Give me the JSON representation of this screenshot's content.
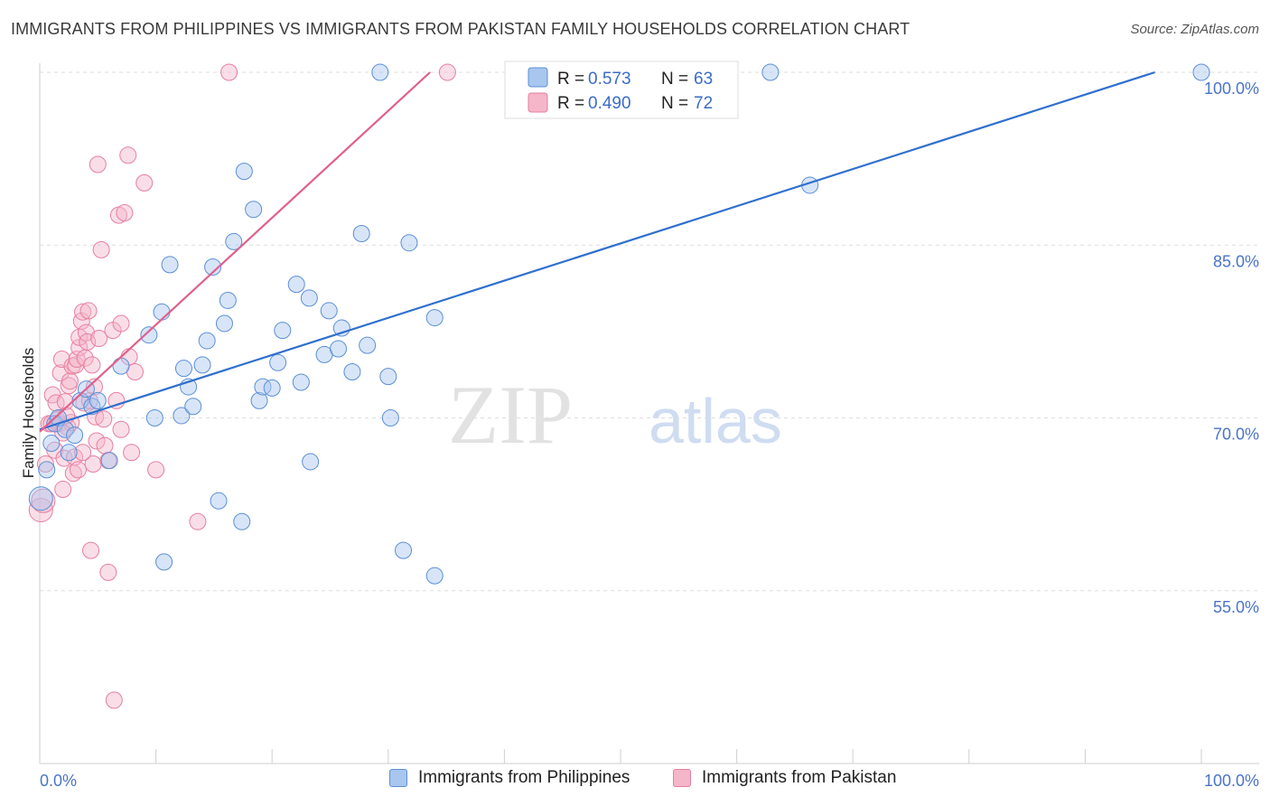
{
  "header": {
    "title": "IMMIGRANTS FROM PHILIPPINES VS IMMIGRANTS FROM PAKISTAN FAMILY HOUSEHOLDS CORRELATION CHART",
    "source": "Source: ZipAtlas.com"
  },
  "watermark": {
    "zip": "ZIP",
    "atlas": "atlas"
  },
  "colors": {
    "blue_fill": "#a9c6ef",
    "blue_stroke": "#5b8fd6",
    "blue_line": "#2f6fce",
    "pink_fill": "#f5b6c9",
    "pink_stroke": "#e77fa0",
    "pink_line": "#e0608c",
    "axis_text": "#4a74c9",
    "grid": "#dddddd"
  },
  "legend": {
    "blue": {
      "r_label": "R =",
      "r_value": "0.573",
      "n_label": "N =",
      "n_value": "63"
    },
    "pink": {
      "r_label": "R =",
      "r_value": "0.490",
      "n_label": "N =",
      "n_value": "72"
    }
  },
  "bottom_legend": {
    "blue_label": "Immigrants from Philippines",
    "pink_label": "Immigrants from Pakistan"
  },
  "chart_data": {
    "type": "scatter",
    "title": "IMMIGRANTS FROM PHILIPPINES VS IMMIGRANTS FROM PAKISTAN FAMILY HOUSEHOLDS CORRELATION CHART",
    "xlabel": "",
    "ylabel": "Family Households",
    "xlim": [
      0,
      100
    ],
    "ylim": [
      40,
      101.5
    ],
    "x_tick_labels": [
      "0.0%",
      "100.0%"
    ],
    "y_ticks": [
      55,
      70,
      85,
      100
    ],
    "y_tick_labels": [
      "55.0%",
      "70.0%",
      "85.0%",
      "100.0%"
    ],
    "grid": true,
    "series": [
      {
        "name": "Immigrants from Philippines",
        "color": "blue",
        "r": 0.573,
        "n": 63,
        "trend": {
          "x0": 0,
          "y0": 69.0,
          "x1": 96,
          "y1": 100.0
        },
        "points": [
          [
            0.1,
            63.0
          ],
          [
            0.6,
            65.5
          ],
          [
            1.0,
            67.8
          ],
          [
            1.3,
            69.5
          ],
          [
            1.6,
            70.0
          ],
          [
            2.2,
            69.0
          ],
          [
            2.5,
            67.0
          ],
          [
            3.0,
            68.5
          ],
          [
            3.5,
            71.5
          ],
          [
            4.0,
            72.5
          ],
          [
            4.5,
            71.0
          ],
          [
            5.0,
            71.5
          ],
          [
            6.0,
            66.3
          ],
          [
            7.0,
            74.5
          ],
          [
            9.4,
            77.2
          ],
          [
            9.9,
            70.0
          ],
          [
            10.5,
            79.2
          ],
          [
            10.7,
            57.5
          ],
          [
            11.2,
            83.3
          ],
          [
            12.2,
            70.2
          ],
          [
            12.4,
            74.3
          ],
          [
            12.8,
            72.7
          ],
          [
            13.2,
            71.0
          ],
          [
            14.0,
            74.6
          ],
          [
            14.4,
            76.7
          ],
          [
            14.9,
            83.1
          ],
          [
            15.4,
            62.8
          ],
          [
            15.9,
            78.2
          ],
          [
            16.2,
            80.2
          ],
          [
            16.7,
            85.3
          ],
          [
            17.4,
            61.0
          ],
          [
            17.6,
            91.4
          ],
          [
            18.4,
            88.1
          ],
          [
            18.9,
            71.5
          ],
          [
            19.2,
            72.7
          ],
          [
            20.0,
            72.6
          ],
          [
            20.5,
            74.8
          ],
          [
            20.9,
            77.6
          ],
          [
            22.1,
            81.6
          ],
          [
            22.5,
            73.1
          ],
          [
            23.2,
            80.4
          ],
          [
            23.3,
            66.2
          ],
          [
            24.5,
            75.5
          ],
          [
            24.9,
            79.3
          ],
          [
            25.7,
            76.0
          ],
          [
            26.0,
            77.8
          ],
          [
            26.9,
            74.0
          ],
          [
            27.7,
            86.0
          ],
          [
            28.2,
            76.3
          ],
          [
            29.3,
            100.0
          ],
          [
            30.0,
            73.6
          ],
          [
            30.2,
            70.0
          ],
          [
            31.3,
            58.5
          ],
          [
            31.8,
            85.2
          ],
          [
            34.0,
            56.3
          ],
          [
            34.0,
            78.7
          ],
          [
            62.9,
            100.0
          ],
          [
            66.3,
            90.2
          ],
          [
            100.0,
            100.0
          ]
        ]
      },
      {
        "name": "Immigrants from Pakistan",
        "color": "pink",
        "r": 0.49,
        "n": 72,
        "trend": {
          "x0": 0,
          "y0": 68.8,
          "x1": 33.6,
          "y1": 100.0
        },
        "points": [
          [
            0.1,
            62.0
          ],
          [
            0.3,
            62.8
          ],
          [
            0.5,
            66.0
          ],
          [
            0.8,
            69.5
          ],
          [
            1.0,
            69.5
          ],
          [
            1.1,
            72.0
          ],
          [
            1.3,
            67.2
          ],
          [
            1.4,
            71.3
          ],
          [
            1.5,
            69.8
          ],
          [
            1.6,
            69.5
          ],
          [
            1.8,
            73.9
          ],
          [
            1.9,
            75.1
          ],
          [
            2.0,
            63.8
          ],
          [
            2.1,
            66.5
          ],
          [
            2.2,
            71.4
          ],
          [
            2.4,
            69.2
          ],
          [
            2.5,
            72.8
          ],
          [
            2.6,
            73.2
          ],
          [
            2.7,
            69.6
          ],
          [
            2.8,
            74.5
          ],
          [
            2.9,
            65.2
          ],
          [
            3.0,
            66.6
          ],
          [
            3.1,
            74.6
          ],
          [
            3.2,
            75.1
          ],
          [
            3.3,
            65.5
          ],
          [
            3.4,
            76.1
          ],
          [
            3.4,
            77.0
          ],
          [
            3.6,
            78.4
          ],
          [
            3.7,
            79.2
          ],
          [
            3.8,
            71.3
          ],
          [
            3.9,
            75.2
          ],
          [
            4.0,
            77.4
          ],
          [
            4.1,
            76.6
          ],
          [
            4.2,
            79.3
          ],
          [
            4.3,
            71.5
          ],
          [
            4.4,
            58.5
          ],
          [
            4.6,
            66.0
          ],
          [
            4.7,
            72.7
          ],
          [
            4.8,
            70.1
          ],
          [
            4.9,
            68.0
          ],
          [
            5.0,
            92.0
          ],
          [
            5.1,
            76.9
          ],
          [
            5.3,
            84.6
          ],
          [
            5.6,
            67.6
          ],
          [
            5.9,
            66.3
          ],
          [
            5.9,
            56.6
          ],
          [
            6.3,
            77.6
          ],
          [
            6.4,
            45.5
          ],
          [
            6.6,
            71.5
          ],
          [
            6.8,
            87.6
          ],
          [
            7.0,
            78.2
          ],
          [
            7.0,
            69.0
          ],
          [
            7.3,
            87.8
          ],
          [
            7.6,
            92.8
          ],
          [
            7.7,
            75.3
          ],
          [
            7.9,
            67.0
          ],
          [
            8.2,
            74.0
          ],
          [
            9.0,
            90.4
          ],
          [
            10.0,
            65.5
          ],
          [
            13.6,
            61.0
          ],
          [
            16.3,
            100.0
          ],
          [
            35.1,
            100.0
          ],
          [
            2.3,
            70.2
          ],
          [
            2.0,
            68.7
          ],
          [
            3.7,
            67.0
          ],
          [
            4.5,
            74.6
          ],
          [
            5.5,
            69.9
          ]
        ]
      }
    ]
  }
}
